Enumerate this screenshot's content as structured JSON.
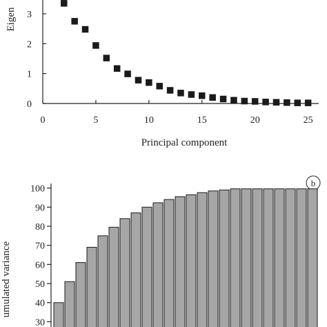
{
  "chart_data": [
    {
      "type": "scatter",
      "panel": "a",
      "xlabel": "Principal component",
      "ylabel": "Eigen",
      "xlim": [
        0,
        26
      ],
      "ylim": [
        0,
        3.6
      ],
      "xticks": [
        "0",
        "5",
        "10",
        "15",
        "20",
        "25"
      ],
      "yticks": [
        "0",
        "1",
        "2",
        "3"
      ],
      "marker": "square",
      "color": "#1a1a1a",
      "x": [
        2,
        3,
        4,
        5,
        6,
        7,
        8,
        9,
        10,
        11,
        12,
        13,
        14,
        15,
        16,
        17,
        18,
        19,
        20,
        21,
        22,
        23,
        24,
        25
      ],
      "y": [
        3.35,
        2.75,
        2.48,
        1.94,
        1.52,
        1.17,
        0.99,
        0.78,
        0.7,
        0.58,
        0.44,
        0.35,
        0.3,
        0.26,
        0.2,
        0.15,
        0.11,
        0.08,
        0.07,
        0.05,
        0.04,
        0.03,
        0.02,
        0.02
      ]
    },
    {
      "type": "bar",
      "panel": "b",
      "panel_label": "b",
      "ylabel": "umulated variance",
      "ylim": [
        30,
        100
      ],
      "yticks": [
        "30",
        "40",
        "50",
        "60",
        "70",
        "80",
        "90",
        "100"
      ],
      "bar_color": "#a6a6a6",
      "edge_color": "#1a1a1a",
      "x": [
        2,
        3,
        4,
        5,
        6,
        7,
        8,
        9,
        10,
        11,
        12,
        13,
        14,
        15,
        16,
        17,
        18,
        19,
        20,
        21,
        22,
        23,
        24,
        25
      ],
      "values": [
        40,
        51,
        61,
        69,
        75,
        79.5,
        84,
        87,
        90,
        92.3,
        94,
        95.5,
        96.5,
        97.6,
        98.5,
        99,
        99.6,
        99.6,
        99.6,
        99.6,
        99.6,
        99.6,
        99.6,
        99.6
      ]
    }
  ]
}
